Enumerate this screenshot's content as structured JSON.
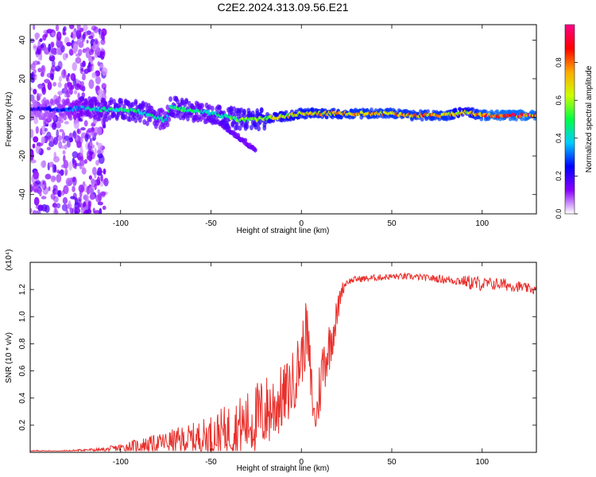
{
  "title": "C2E2.2024.313.09.56.E21",
  "chart_data": [
    {
      "type": "heatmap",
      "title": "C2E2.2024.313.09.56.E21",
      "xlabel": "Height of straight line (km)",
      "ylabel": "Frequency (Hz)",
      "xlim": [
        -150,
        130
      ],
      "ylim": [
        -50,
        48
      ],
      "x_ticks": [
        -100,
        -50,
        0,
        50,
        100
      ],
      "y_ticks": [
        -40,
        -20,
        0,
        20,
        40
      ],
      "x_tick_labels": [
        "-100",
        "-50",
        "0",
        "50",
        "100"
      ],
      "y_tick_labels": [
        "-40",
        "-20",
        "0",
        "20",
        "40"
      ],
      "colorbar": {
        "label": "Normalized spectral amplitude",
        "range": [
          0,
          1
        ],
        "ticks": [
          0,
          0.2,
          0.4,
          0.6,
          0.8
        ],
        "tick_labels": [
          "0.0",
          "0.2",
          "0.4",
          "0.6",
          "0.8"
        ],
        "colors": [
          "#ffffff",
          "#8800ff",
          "#0000ff",
          "#00ccff",
          "#00ff44",
          "#ccff00",
          "#ffaa00",
          "#ff0000",
          "#ff0088"
        ]
      },
      "ridge": {
        "x": [
          -150,
          -130,
          -120,
          -110,
          -100,
          -90,
          -80,
          -75,
          -72,
          -65,
          -55,
          -45,
          -35,
          -25,
          -15,
          -5,
          0,
          10,
          20,
          30,
          40,
          50,
          60,
          70,
          80,
          90,
          100,
          110,
          120,
          130
        ],
        "y": [
          4,
          4,
          5,
          4,
          4,
          3,
          0,
          -2,
          6,
          4,
          3,
          1,
          -1,
          -1,
          0,
          1,
          2,
          2,
          2,
          2,
          2,
          2,
          1,
          1,
          1,
          3,
          1,
          1,
          1,
          1
        ],
        "amplitude": [
          0.2,
          0.3,
          0.4,
          0.45,
          0.5,
          0.5,
          0.45,
          0.4,
          0.5,
          0.5,
          0.45,
          0.5,
          0.55,
          0.6,
          0.65,
          0.7,
          0.75,
          0.75,
          0.75,
          0.8,
          0.8,
          0.8,
          0.8,
          0.8,
          0.8,
          0.65,
          0.85,
          0.9,
          0.9,
          0.9
        ]
      }
    },
    {
      "type": "line",
      "xlabel": "Height of straight line (km)",
      "ylabel": "SNR (10 * v/v)",
      "y_multiplier": "(x10⁴)",
      "xlim": [
        -150,
        130
      ],
      "ylim": [
        0,
        1.4
      ],
      "x_ticks": [
        -100,
        -50,
        0,
        50,
        100
      ],
      "y_ticks": [
        0.2,
        0.4,
        0.6,
        0.8,
        1.0,
        1.2
      ],
      "x_tick_labels": [
        "-100",
        "-50",
        "0",
        "50",
        "100"
      ],
      "y_tick_labels": [
        "0.2",
        "0.4",
        "0.6",
        "0.8",
        "1.0",
        "1.2"
      ],
      "color": "#e8302b",
      "envelope": {
        "x": [
          -150,
          -130,
          -120,
          -110,
          -100,
          -90,
          -80,
          -70,
          -60,
          -50,
          -40,
          -30,
          -25,
          -20,
          -15,
          -10,
          -5,
          0,
          3,
          5,
          7,
          8,
          10,
          12,
          15,
          18,
          20,
          22,
          25,
          30,
          40,
          50,
          60,
          70,
          80,
          90,
          95,
          100,
          110,
          120,
          130
        ],
        "base": [
          0.01,
          0.01,
          0.02,
          0.02,
          0.04,
          0.06,
          0.08,
          0.1,
          0.12,
          0.15,
          0.2,
          0.26,
          0.3,
          0.35,
          0.4,
          0.45,
          0.55,
          0.75,
          0.95,
          0.6,
          0.3,
          0.25,
          0.5,
          0.7,
          0.8,
          0.95,
          1.05,
          1.2,
          1.26,
          1.28,
          1.29,
          1.3,
          1.3,
          1.29,
          1.28,
          1.27,
          1.26,
          1.25,
          1.25,
          1.23,
          1.2
        ],
        "noise": [
          0.01,
          0.01,
          0.01,
          0.02,
          0.04,
          0.07,
          0.08,
          0.12,
          0.15,
          0.2,
          0.25,
          0.3,
          0.35,
          0.35,
          0.35,
          0.3,
          0.3,
          0.3,
          0.3,
          0.3,
          0.15,
          0.12,
          0.3,
          0.3,
          0.25,
          0.2,
          0.15,
          0.08,
          0.03,
          0.03,
          0.03,
          0.03,
          0.03,
          0.03,
          0.04,
          0.05,
          0.08,
          0.06,
          0.06,
          0.05,
          0.04
        ]
      }
    }
  ]
}
